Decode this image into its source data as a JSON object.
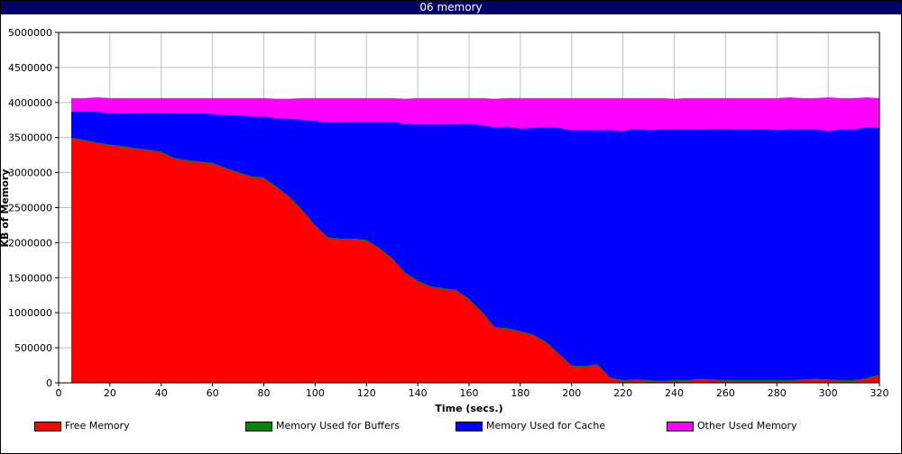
{
  "window": {
    "title": "06 memory"
  },
  "chart_data": {
    "type": "area",
    "stacked": true,
    "title": "06 memory",
    "xlabel": "Time (secs.)",
    "ylabel": "KB of Memory",
    "xlim": [
      0,
      320
    ],
    "ylim": [
      0,
      5000000
    ],
    "grid": true,
    "legend_position": "bottom",
    "x_ticks": [
      0,
      20,
      40,
      60,
      80,
      100,
      120,
      140,
      160,
      180,
      200,
      220,
      240,
      260,
      280,
      300,
      320
    ],
    "y_ticks": [
      0,
      500000,
      1000000,
      1500000,
      2000000,
      2500000,
      3000000,
      3500000,
      4000000,
      4500000,
      5000000
    ],
    "x_tick_labels": [
      "0",
      "20",
      "40",
      "60",
      "80",
      "100",
      "120",
      "140",
      "160",
      "180",
      "200",
      "220",
      "240",
      "260",
      "280",
      "300",
      "320"
    ],
    "y_tick_labels": [
      "0",
      "500000",
      "1000000",
      "1500000",
      "2000000",
      "2500000",
      "3000000",
      "3500000",
      "4000000",
      "4500000",
      "5000000"
    ],
    "x": [
      5,
      10,
      15,
      20,
      25,
      30,
      35,
      40,
      45,
      50,
      55,
      60,
      65,
      70,
      75,
      80,
      85,
      90,
      95,
      100,
      105,
      110,
      115,
      120,
      125,
      130,
      135,
      140,
      145,
      150,
      155,
      160,
      165,
      170,
      175,
      180,
      185,
      190,
      195,
      200,
      205,
      210,
      215,
      220,
      225,
      230,
      235,
      240,
      245,
      250,
      255,
      260,
      265,
      270,
      275,
      280,
      285,
      290,
      295,
      300,
      305,
      310,
      315,
      320
    ],
    "series": [
      {
        "name": "Free Memory",
        "color": "#ff0000",
        "values": [
          3490000,
          3460000,
          3420000,
          3390000,
          3370000,
          3340000,
          3320000,
          3290000,
          3200000,
          3170000,
          3150000,
          3130000,
          3060000,
          3000000,
          2940000,
          2920000,
          2790000,
          2650000,
          2460000,
          2240000,
          2070000,
          2050000,
          2050000,
          2030000,
          1920000,
          1770000,
          1570000,
          1450000,
          1370000,
          1340000,
          1320000,
          1190000,
          1010000,
          790000,
          770000,
          730000,
          680000,
          580000,
          410000,
          240000,
          230000,
          260000,
          70000,
          30000,
          40000,
          30000,
          20000,
          30000,
          30000,
          50000,
          40000,
          30000,
          30000,
          30000,
          30000,
          30000,
          30000,
          40000,
          50000,
          40000,
          30000,
          30000,
          60000,
          110000
        ]
      },
      {
        "name": "Memory Used for Buffers",
        "color": "#008800",
        "values": [
          12000,
          12000,
          12000,
          12000,
          12000,
          12000,
          12000,
          12000,
          12000,
          12000,
          12000,
          12000,
          12000,
          12000,
          12000,
          12000,
          12000,
          12000,
          12000,
          12000,
          12000,
          12000,
          12000,
          12000,
          12000,
          12000,
          12000,
          12000,
          12000,
          12000,
          12000,
          12000,
          12000,
          12000,
          12000,
          12000,
          12000,
          12000,
          12000,
          12000,
          12000,
          12000,
          12000,
          12000,
          12000,
          12000,
          12000,
          12000,
          12000,
          12000,
          12000,
          12000,
          12000,
          12000,
          12000,
          12000,
          12000,
          12000,
          12000,
          12000,
          12000,
          12000,
          12000,
          12000
        ]
      },
      {
        "name": "Memory Used for Cache",
        "color": "#0000ff",
        "values": [
          368000,
          403000,
          438000,
          453000,
          468000,
          498000,
          528000,
          558000,
          638000,
          668000,
          688000,
          698000,
          753000,
          808000,
          858000,
          868000,
          978000,
          1108000,
          1288000,
          1488000,
          1638000,
          1658000,
          1668000,
          1688000,
          1798000,
          1948000,
          2118000,
          2228000,
          2308000,
          2338000,
          2358000,
          2498000,
          2658000,
          2848000,
          2878000,
          2888000,
          2948000,
          3058000,
          3218000,
          3358000,
          3368000,
          3338000,
          3528000,
          3558000,
          3578000,
          3568000,
          3588000,
          3588000,
          3578000,
          3558000,
          3578000,
          3588000,
          3578000,
          3578000,
          3588000,
          3568000,
          3578000,
          3568000,
          3558000,
          3548000,
          3578000,
          3578000,
          3578000,
          3518000
        ]
      },
      {
        "name": "Other Used Memory",
        "color": "#ff00ff",
        "values": [
          190000,
          185000,
          200000,
          205000,
          210000,
          210000,
          200000,
          200000,
          210000,
          210000,
          210000,
          220000,
          235000,
          240000,
          250000,
          260000,
          270000,
          280000,
          300000,
          320000,
          340000,
          340000,
          330000,
          330000,
          330000,
          330000,
          350000,
          370000,
          370000,
          370000,
          370000,
          360000,
          380000,
          400000,
          400000,
          430000,
          420000,
          410000,
          420000,
          450000,
          450000,
          450000,
          450000,
          460000,
          430000,
          450000,
          440000,
          420000,
          440000,
          440000,
          430000,
          430000,
          440000,
          440000,
          430000,
          450000,
          450000,
          440000,
          440000,
          470000,
          440000,
          440000,
          420000,
          420000
        ]
      }
    ]
  }
}
